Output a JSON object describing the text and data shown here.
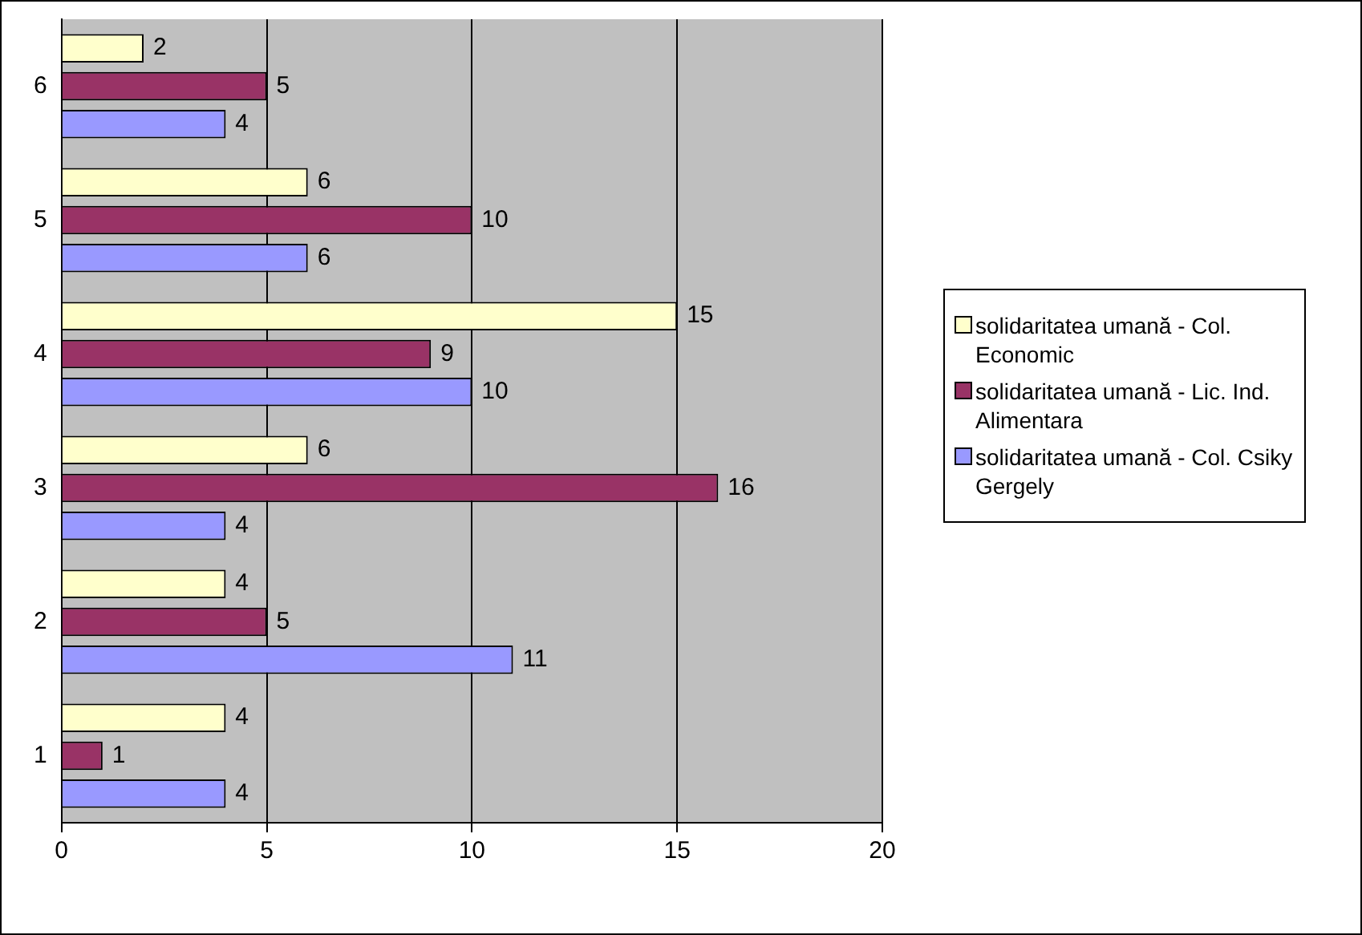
{
  "chart_data": {
    "type": "bar",
    "orientation": "horizontal",
    "categories": [
      "6",
      "5",
      "4",
      "3",
      "2",
      "1"
    ],
    "series": [
      {
        "name": "solidaritatea umană - Col. Economic",
        "color": "#ffffcc",
        "values": [
          2,
          6,
          15,
          6,
          4,
          4
        ]
      },
      {
        "name": "solidaritatea umană - Lic. Ind. Alimentara",
        "color": "#993366",
        "values": [
          5,
          10,
          9,
          16,
          5,
          1
        ]
      },
      {
        "name": "solidaritatea umană - Col. Csiky Gergely",
        "color": "#9999ff",
        "values": [
          4,
          6,
          10,
          4,
          11,
          4
        ]
      }
    ],
    "xlim": [
      0,
      20
    ],
    "xticks": [
      0,
      5,
      10,
      15,
      20
    ],
    "grid": "x",
    "legend": "right",
    "data_labels": true
  }
}
